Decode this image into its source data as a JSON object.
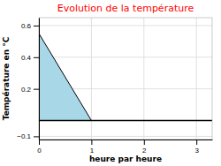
{
  "chart_data": {
    "type": "area",
    "title": "Evolution de la température",
    "x_label": "heure par heure",
    "y_label": "Température en °C",
    "x": [
      0,
      1
    ],
    "values": [
      0.55,
      0.0
    ],
    "baseline": 0,
    "color": "#a8d8e8",
    "xlim": [
      0,
      3.3
    ],
    "ylim": [
      -0.12,
      0.65
    ],
    "xticks": [
      0,
      1,
      2,
      3
    ],
    "yticks": [
      {
        "value": -0.1,
        "label": "−0.1"
      },
      0.2,
      0.4,
      0.6
    ],
    "grid": true
  }
}
